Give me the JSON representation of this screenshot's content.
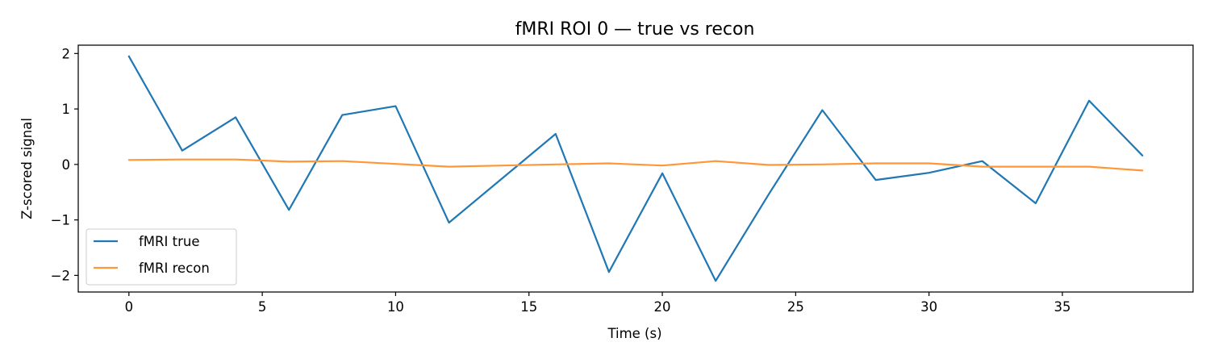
{
  "chart_data": {
    "type": "line",
    "title": "fMRI ROI 0 — true vs recon",
    "xlabel": "Time (s)",
    "ylabel": "Z-scored signal",
    "xlim": [
      -1.9,
      39.9
    ],
    "ylim": [
      -2.3,
      2.15
    ],
    "xticks": [
      0,
      5,
      10,
      15,
      20,
      25,
      30,
      35
    ],
    "yticks": [
      -2,
      -1,
      0,
      1,
      2
    ],
    "xtick_labels": [
      "0",
      "5",
      "10",
      "15",
      "20",
      "25",
      "30",
      "35"
    ],
    "ytick_labels": [
      "−2",
      "−1",
      "0",
      "1",
      "2"
    ],
    "grid": false,
    "legend_position": "lower-left",
    "x": [
      0,
      2,
      4,
      6,
      8,
      10,
      12,
      14,
      16,
      18,
      20,
      22,
      24,
      26,
      28,
      30,
      32,
      34,
      36,
      38
    ],
    "series": [
      {
        "name": "fMRI true",
        "color": "#1f77b4",
        "values": [
          1.95,
          0.25,
          0.85,
          -0.82,
          0.89,
          1.05,
          -1.05,
          -0.25,
          0.55,
          -1.94,
          -0.16,
          -2.1,
          -0.53,
          0.98,
          -0.28,
          -0.15,
          0.06,
          -0.7,
          1.15,
          0.16
        ]
      },
      {
        "name": "fMRI recon",
        "color": "#ff9737",
        "values": [
          0.08,
          0.09,
          0.09,
          0.05,
          0.06,
          0.01,
          -0.04,
          -0.02,
          0.0,
          0.02,
          -0.02,
          0.06,
          -0.01,
          0.0,
          0.02,
          0.02,
          -0.04,
          -0.04,
          -0.04,
          -0.11
        ]
      }
    ]
  }
}
